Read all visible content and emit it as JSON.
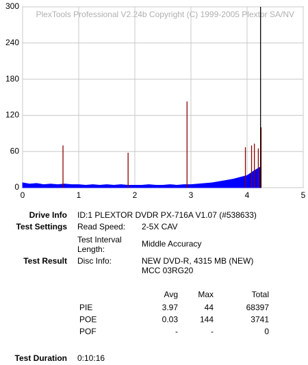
{
  "chart_data": {
    "type": "spectrum",
    "title": "PlexTools Professional V2.24b Copyright (C) 1999-2005 Plextor SA/NV",
    "xlim": [
      0,
      5
    ],
    "xticks": [
      0,
      1,
      2,
      3,
      4,
      5
    ],
    "ylim": [
      0,
      300
    ],
    "yticks": [
      0,
      60,
      120,
      180,
      240,
      300
    ],
    "grid": true,
    "area": {
      "color": "#0000ff",
      "x": [
        0,
        0.125,
        0.25,
        0.375,
        0.5,
        0.625,
        0.75,
        0.875,
        1,
        1.125,
        1.25,
        1.375,
        1.5,
        1.625,
        1.75,
        1.875,
        2,
        2.125,
        2.25,
        2.375,
        2.5,
        2.625,
        2.75,
        2.875,
        3,
        3.125,
        3.25,
        3.375,
        3.5,
        3.625,
        3.75,
        3.875,
        4,
        4.125,
        4.25
      ],
      "values": [
        8,
        6,
        7,
        5,
        6,
        5,
        6,
        5,
        5,
        4,
        5,
        4,
        5,
        4,
        5,
        4,
        4,
        4,
        5,
        4,
        4,
        5,
        4,
        5,
        5,
        6,
        7,
        8,
        10,
        12,
        14,
        17,
        20,
        28,
        35
      ]
    },
    "series": [
      {
        "color": "#8b0000",
        "x": [
          0.72,
          1.88,
          2.93,
          3.97,
          4.08,
          4.13,
          4.2,
          4.25
        ],
        "values": [
          70,
          58,
          143,
          67,
          70,
          73,
          65,
          100
        ]
      },
      {
        "color": "#000000",
        "x": [
          4.24
        ],
        "values": [
          300
        ]
      }
    ]
  },
  "info": {
    "drive_label": "Drive Info",
    "drive_value": "ID:1 PLEXTOR DVDR PX-716A V1.07 (#538633)",
    "settings_label": "Test Settings",
    "speed_label": "Read Speed:",
    "speed_value": "2-5X CAV",
    "interval_label": [
      "Test Interval",
      "Length:"
    ],
    "interval_value": "Middle Accuracy",
    "result_label": "Test Result",
    "disc_label": "Disc Info:",
    "disc_value": [
      "NEW DVD-R, 4315 MB (NEW)",
      "MCC 03RG20"
    ],
    "table": {
      "header": [
        "Avg",
        "Max",
        "Total"
      ],
      "rows": [
        [
          "PIE",
          "3.97",
          "44",
          "68397"
        ],
        [
          "POE",
          "0.03",
          "144",
          "3741"
        ],
        [
          "POF",
          "-",
          "-",
          "0"
        ]
      ]
    },
    "duration_label": "Test Duration",
    "duration_value": "0:10:16"
  }
}
